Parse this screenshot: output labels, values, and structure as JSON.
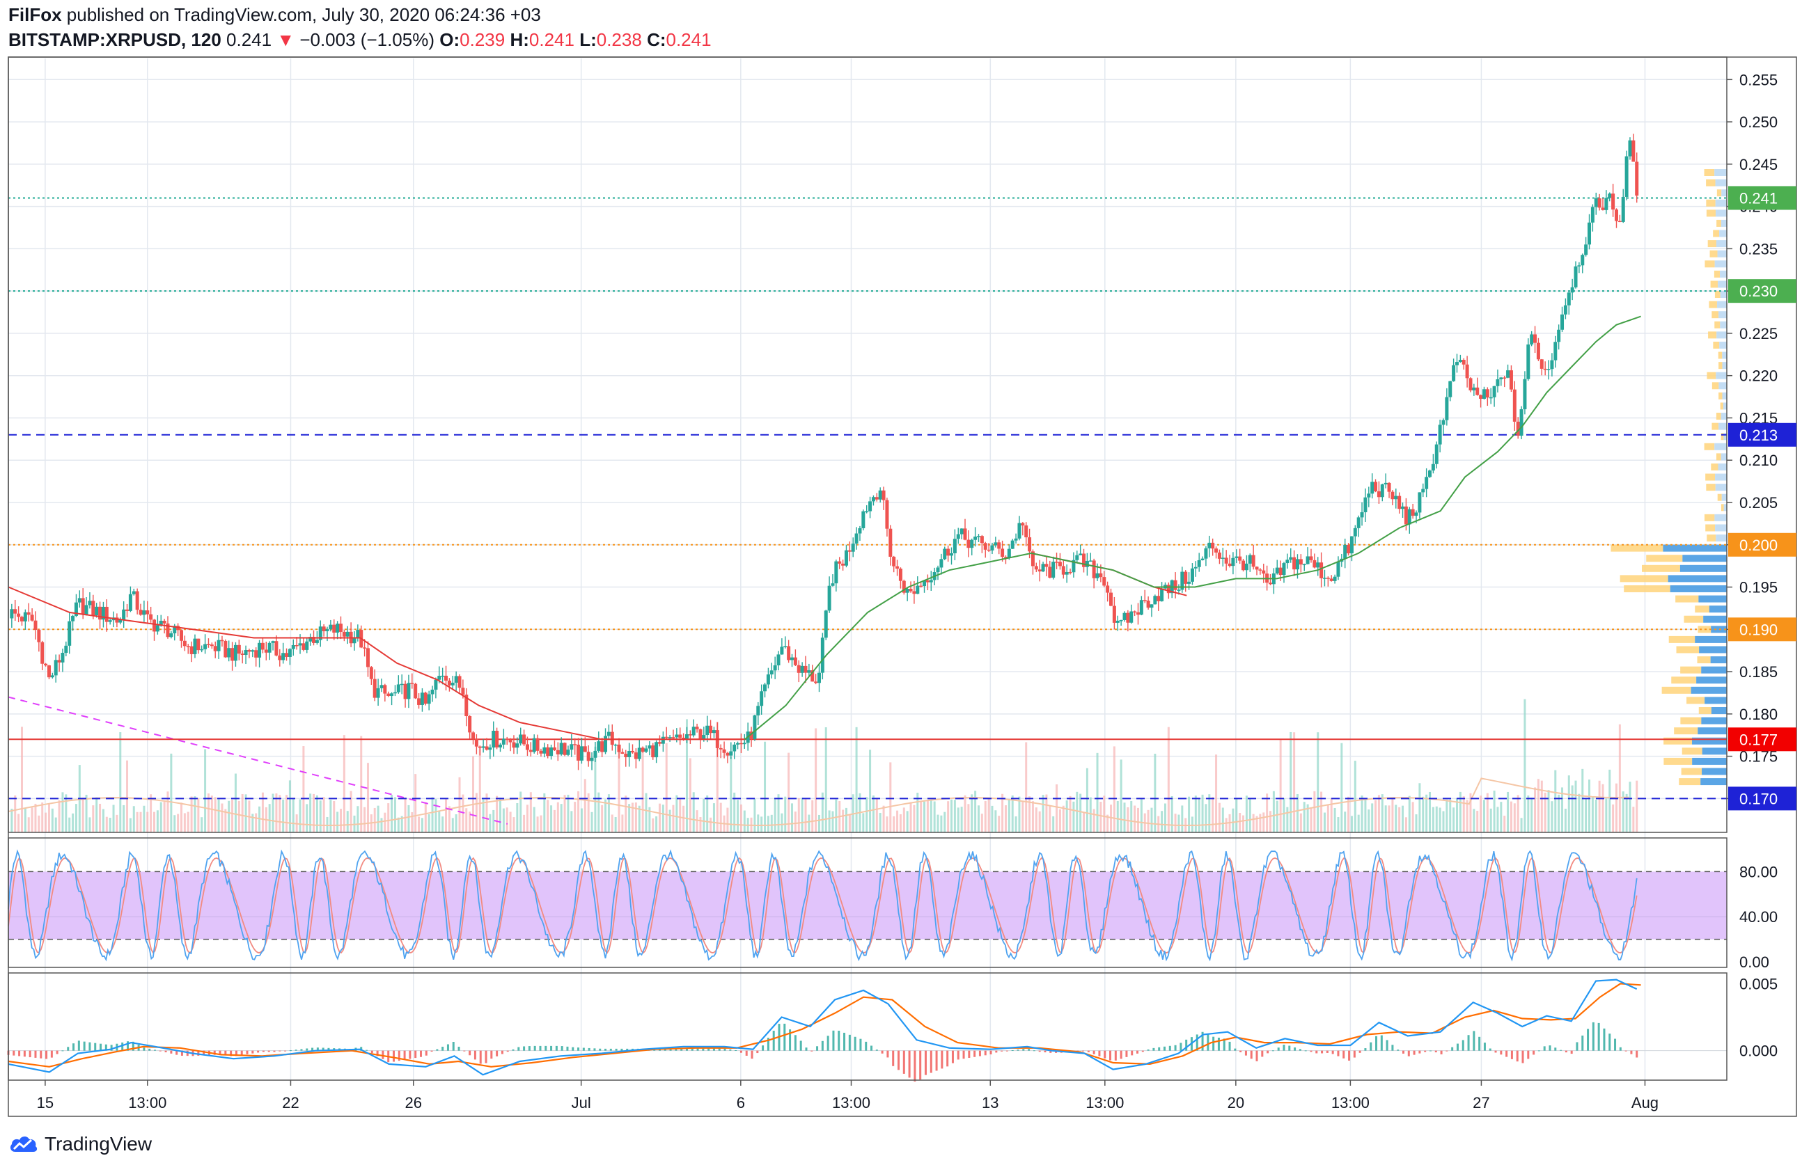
{
  "header": {
    "author": "FilFox",
    "published": " published on TradingView.com, July 30, 2020 06:24:36 +03",
    "symbol": "BITSTAMP:XRPUSD, 120",
    "price": "0.241",
    "arrow": "▼",
    "change": "−0.003 (−1.05%)",
    "o_label": "O:",
    "o": "0.239",
    "h_label": "H:",
    "h": "0.241",
    "l_label": "L:",
    "l": "0.238",
    "c_label": "C:",
    "c": "0.241"
  },
  "brand": {
    "name": "TradingView",
    "icon": "tradingview-cloud-logo-icon"
  },
  "chart_data": {
    "type": "candlestick",
    "symbol": "BITSTAMP:XRPUSD",
    "interval": "120",
    "y_ticks": [
      "0.255",
      "0.250",
      "0.245",
      "0.240",
      "0.235",
      "0.230",
      "0.225",
      "0.220",
      "0.215",
      "0.210",
      "0.205",
      "0.200",
      "0.195",
      "0.190",
      "0.185",
      "0.180",
      "0.175",
      "0.170"
    ],
    "y_range": [
      0.166,
      0.257
    ],
    "x_ticks": [
      {
        "label": "15",
        "day": 0.9
      },
      {
        "label": "13:00",
        "day": 3.4
      },
      {
        "label": "22",
        "day": 6.9
      },
      {
        "label": "26",
        "day": 9.9
      },
      {
        "label": "Jul",
        "day": 14.0
      },
      {
        "label": "6",
        "day": 17.9
      },
      {
        "label": "13:00",
        "day": 20.6
      },
      {
        "label": "13",
        "day": 24.0
      },
      {
        "label": "13:00",
        "day": 26.8
      },
      {
        "label": "20",
        "day": 30.0
      },
      {
        "label": "13:00",
        "day": 32.8
      },
      {
        "label": "27",
        "day": 36.0
      },
      {
        "label": "Aug",
        "day": 40.0
      }
    ],
    "x_range_days": [
      0,
      42
    ],
    "close_path": [
      [
        0.0,
        0.192
      ],
      [
        0.6,
        0.191
      ],
      [
        1.0,
        0.184
      ],
      [
        1.3,
        0.187
      ],
      [
        1.7,
        0.193
      ],
      [
        2.2,
        0.192
      ],
      [
        2.7,
        0.191
      ],
      [
        3.0,
        0.194
      ],
      [
        3.4,
        0.191
      ],
      [
        3.9,
        0.19
      ],
      [
        4.4,
        0.188
      ],
      [
        5.0,
        0.188
      ],
      [
        5.6,
        0.187
      ],
      [
        6.2,
        0.188
      ],
      [
        6.8,
        0.187
      ],
      [
        7.4,
        0.189
      ],
      [
        8.0,
        0.19
      ],
      [
        8.6,
        0.189
      ],
      [
        8.9,
        0.183
      ],
      [
        9.3,
        0.182
      ],
      [
        9.8,
        0.183
      ],
      [
        10.2,
        0.181
      ],
      [
        10.6,
        0.185
      ],
      [
        11.1,
        0.183
      ],
      [
        11.4,
        0.176
      ],
      [
        11.8,
        0.177
      ],
      [
        12.3,
        0.177
      ],
      [
        12.9,
        0.176
      ],
      [
        13.5,
        0.176
      ],
      [
        14.1,
        0.175
      ],
      [
        14.7,
        0.177
      ],
      [
        15.2,
        0.175
      ],
      [
        15.8,
        0.176
      ],
      [
        16.4,
        0.177
      ],
      [
        17.0,
        0.178
      ],
      [
        17.6,
        0.176
      ],
      [
        18.1,
        0.177
      ],
      [
        18.5,
        0.183
      ],
      [
        18.9,
        0.188
      ],
      [
        19.4,
        0.185
      ],
      [
        19.8,
        0.184
      ],
      [
        20.1,
        0.196
      ],
      [
        20.5,
        0.199
      ],
      [
        20.9,
        0.204
      ],
      [
        21.3,
        0.207
      ],
      [
        21.6,
        0.198
      ],
      [
        22.0,
        0.194
      ],
      [
        22.6,
        0.197
      ],
      [
        23.2,
        0.201
      ],
      [
        23.8,
        0.2
      ],
      [
        24.4,
        0.199
      ],
      [
        24.8,
        0.203
      ],
      [
        25.0,
        0.197
      ],
      [
        25.6,
        0.197
      ],
      [
        26.2,
        0.198
      ],
      [
        26.8,
        0.196
      ],
      [
        27.1,
        0.19
      ],
      [
        27.5,
        0.192
      ],
      [
        28.0,
        0.194
      ],
      [
        28.5,
        0.195
      ],
      [
        29.0,
        0.197
      ],
      [
        29.4,
        0.2
      ],
      [
        29.8,
        0.198
      ],
      [
        30.3,
        0.198
      ],
      [
        30.8,
        0.195
      ],
      [
        31.3,
        0.198
      ],
      [
        31.8,
        0.198
      ],
      [
        32.3,
        0.196
      ],
      [
        32.8,
        0.2
      ],
      [
        33.3,
        0.207
      ],
      [
        33.8,
        0.206
      ],
      [
        34.2,
        0.203
      ],
      [
        34.6,
        0.206
      ],
      [
        35.0,
        0.214
      ],
      [
        35.4,
        0.222
      ],
      [
        35.8,
        0.218
      ],
      [
        36.2,
        0.217
      ],
      [
        36.6,
        0.221
      ],
      [
        36.9,
        0.213
      ],
      [
        37.2,
        0.225
      ],
      [
        37.6,
        0.22
      ],
      [
        38.0,
        0.228
      ],
      [
        38.4,
        0.234
      ],
      [
        38.8,
        0.24
      ],
      [
        39.1,
        0.241
      ],
      [
        39.4,
        0.238
      ],
      [
        39.6,
        0.249
      ],
      [
        39.8,
        0.241
      ]
    ],
    "ma_fast": [
      [
        0.0,
        0.195
      ],
      [
        1.5,
        0.192
      ],
      [
        3.0,
        0.191
      ],
      [
        4.5,
        0.19
      ],
      [
        6.0,
        0.189
      ],
      [
        7.5,
        0.189
      ],
      [
        8.6,
        0.189
      ],
      [
        9.5,
        0.186
      ],
      [
        10.5,
        0.184
      ],
      [
        11.5,
        0.181
      ],
      [
        12.5,
        0.179
      ],
      [
        13.5,
        0.178
      ],
      [
        14.5,
        0.177
      ],
      [
        15.5,
        0.177
      ],
      [
        16.5,
        0.177
      ],
      [
        17.5,
        0.177
      ],
      [
        18.0,
        0.177
      ]
    ],
    "ma_fast_2": [
      [
        25.0,
        0.199
      ],
      [
        26.0,
        0.198
      ],
      [
        27.0,
        0.197
      ],
      [
        28.0,
        0.195
      ],
      [
        28.8,
        0.194
      ]
    ],
    "ma_slow": [
      [
        18.0,
        0.177
      ],
      [
        19.0,
        0.181
      ],
      [
        20.0,
        0.187
      ],
      [
        21.0,
        0.192
      ],
      [
        22.0,
        0.195
      ],
      [
        23.0,
        0.197
      ],
      [
        24.0,
        0.198
      ],
      [
        25.0,
        0.199
      ],
      [
        26.0,
        0.198
      ],
      [
        27.0,
        0.197
      ],
      [
        28.0,
        0.195
      ],
      [
        29.0,
        0.195
      ],
      [
        30.0,
        0.196
      ],
      [
        31.0,
        0.196
      ],
      [
        32.0,
        0.197
      ],
      [
        33.0,
        0.199
      ],
      [
        34.0,
        0.202
      ],
      [
        35.0,
        0.204
      ],
      [
        35.6,
        0.208
      ],
      [
        36.4,
        0.211
      ],
      [
        37.0,
        0.214
      ],
      [
        37.6,
        0.218
      ],
      [
        38.2,
        0.221
      ],
      [
        38.8,
        0.224
      ],
      [
        39.3,
        0.226
      ],
      [
        39.9,
        0.227
      ]
    ],
    "trendline": [
      [
        0.0,
        0.182
      ],
      [
        12.2,
        0.167
      ]
    ],
    "levels": [
      {
        "value": 0.241,
        "label": "0.241",
        "line_color": "#22ab94",
        "tag_color": "#4caf50",
        "style": "dotted"
      },
      {
        "value": 0.23,
        "label": "0.230",
        "line_color": "#22ab94",
        "tag_color": "#4caf50",
        "style": "dotted"
      },
      {
        "value": 0.213,
        "label": "0.213",
        "line_color": "#1e22d6",
        "tag_color": "#1e22d6",
        "style": "dashed"
      },
      {
        "value": 0.2,
        "label": "0.200",
        "line_color": "#f7931a",
        "tag_color": "#f7931a",
        "style": "dotted"
      },
      {
        "value": 0.19,
        "label": "0.190",
        "line_color": "#f7931a",
        "tag_color": "#f7931a",
        "style": "dotted"
      },
      {
        "value": 0.177,
        "label": "0.177",
        "line_color": "#e53935",
        "tag_color": "#f20000",
        "style": "solid"
      },
      {
        "value": 0.17,
        "label": "0.170",
        "line_color": "#1e22d6",
        "tag_color": "#1e22d6",
        "style": "dashed"
      }
    ],
    "stoch_rsi": {
      "y_ticks": [
        "80.00",
        "40.00",
        "0.00"
      ],
      "range": [
        0,
        100
      ],
      "band": [
        20,
        80
      ],
      "band_color": "#e1c4fb",
      "k_color": "#4fa3f0",
      "d_color": "#f28b82"
    },
    "macd": {
      "y_ticks": [
        "0.005",
        "0.000"
      ],
      "range": [
        -0.0022,
        0.0058
      ],
      "macd_line": [
        [
          0.0,
          -0.001
        ],
        [
          1.0,
          -0.0016
        ],
        [
          1.7,
          -0.0002
        ],
        [
          2.5,
          0.0001
        ],
        [
          3.0,
          0.0006
        ],
        [
          3.6,
          0.0003
        ],
        [
          4.5,
          -0.0002
        ],
        [
          5.5,
          -0.0006
        ],
        [
          6.5,
          -0.0004
        ],
        [
          7.5,
          0.0
        ],
        [
          8.6,
          0.0001
        ],
        [
          9.3,
          -0.001
        ],
        [
          10.2,
          -0.0012
        ],
        [
          10.9,
          -0.0004
        ],
        [
          11.6,
          -0.0018
        ],
        [
          12.5,
          -0.0008
        ],
        [
          13.5,
          -0.0004
        ],
        [
          14.5,
          -0.0002
        ],
        [
          15.5,
          0.0001
        ],
        [
          16.5,
          0.0003
        ],
        [
          17.5,
          0.0003
        ],
        [
          18.2,
          0.0001
        ],
        [
          18.9,
          0.0025
        ],
        [
          19.6,
          0.0018
        ],
        [
          20.2,
          0.0038
        ],
        [
          20.9,
          0.0045
        ],
        [
          21.5,
          0.0035
        ],
        [
          22.2,
          0.0008
        ],
        [
          23.0,
          0.0002
        ],
        [
          24.0,
          0.0001
        ],
        [
          24.9,
          0.0003
        ],
        [
          25.5,
          0.0
        ],
        [
          26.3,
          -0.0002
        ],
        [
          27.0,
          -0.0014
        ],
        [
          27.8,
          -0.001
        ],
        [
          28.6,
          -0.0002
        ],
        [
          29.2,
          0.0012
        ],
        [
          29.8,
          0.0014
        ],
        [
          30.5,
          0.0002
        ],
        [
          31.2,
          0.0009
        ],
        [
          32.0,
          0.0004
        ],
        [
          32.8,
          0.0004
        ],
        [
          33.5,
          0.0021
        ],
        [
          34.2,
          0.0011
        ],
        [
          35.0,
          0.0014
        ],
        [
          35.8,
          0.0036
        ],
        [
          36.4,
          0.0028
        ],
        [
          37.0,
          0.0018
        ],
        [
          37.6,
          0.0026
        ],
        [
          38.2,
          0.0022
        ],
        [
          38.8,
          0.0052
        ],
        [
          39.3,
          0.0053
        ],
        [
          39.8,
          0.0046
        ]
      ],
      "signal_line": [
        [
          0.0,
          -0.0008
        ],
        [
          1.0,
          -0.0012
        ],
        [
          1.8,
          -0.0006
        ],
        [
          2.6,
          -0.0001
        ],
        [
          3.3,
          0.0003
        ],
        [
          4.2,
          0.0002
        ],
        [
          5.2,
          -0.0003
        ],
        [
          6.2,
          -0.0004
        ],
        [
          7.2,
          -0.0002
        ],
        [
          8.4,
          0.0
        ],
        [
          9.4,
          -0.0005
        ],
        [
          10.3,
          -0.001
        ],
        [
          11.0,
          -0.0008
        ],
        [
          11.8,
          -0.0012
        ],
        [
          12.8,
          -0.0009
        ],
        [
          13.8,
          -0.0005
        ],
        [
          14.8,
          -0.0002
        ],
        [
          15.8,
          0.0001
        ],
        [
          16.8,
          0.0002
        ],
        [
          17.8,
          0.0002
        ],
        [
          18.6,
          0.0008
        ],
        [
          19.4,
          0.0016
        ],
        [
          20.2,
          0.0028
        ],
        [
          20.9,
          0.004
        ],
        [
          21.6,
          0.0038
        ],
        [
          22.4,
          0.0018
        ],
        [
          23.2,
          0.0006
        ],
        [
          24.2,
          0.0002
        ],
        [
          25.2,
          0.0002
        ],
        [
          26.2,
          -0.0001
        ],
        [
          27.0,
          -0.0009
        ],
        [
          27.9,
          -0.001
        ],
        [
          28.7,
          -0.0004
        ],
        [
          29.4,
          0.0006
        ],
        [
          30.0,
          0.001
        ],
        [
          30.7,
          0.0006
        ],
        [
          31.5,
          0.0006
        ],
        [
          32.3,
          0.0005
        ],
        [
          33.2,
          0.0012
        ],
        [
          34.0,
          0.0014
        ],
        [
          34.8,
          0.0013
        ],
        [
          35.6,
          0.0025
        ],
        [
          36.3,
          0.003
        ],
        [
          37.0,
          0.0024
        ],
        [
          37.7,
          0.0023
        ],
        [
          38.3,
          0.0024
        ],
        [
          38.9,
          0.004
        ],
        [
          39.4,
          0.005
        ],
        [
          39.9,
          0.0049
        ]
      ],
      "macd_color": "#2196f3",
      "signal_color": "#ff6d00"
    }
  }
}
